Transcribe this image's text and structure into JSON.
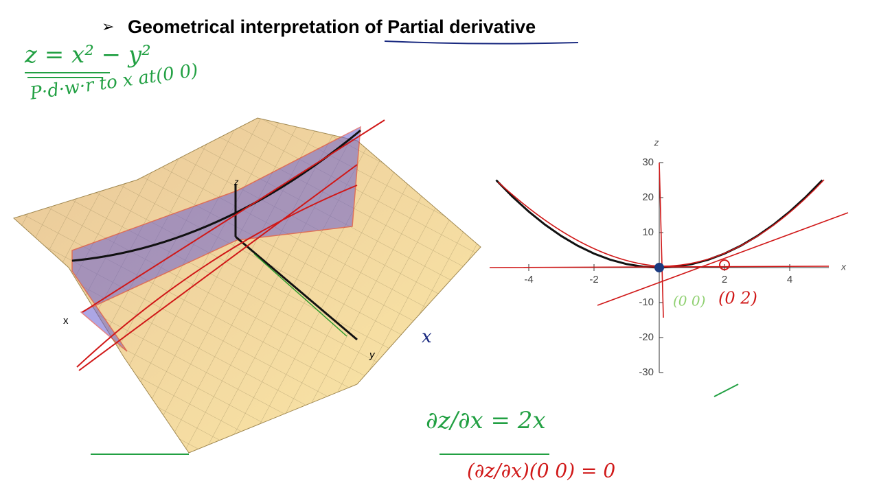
{
  "title": "Geometrical interpretation of Partial derivative",
  "notes": [
    "z = x² − y²",
    "P·d·w·r to x at(0 0)",
    "(0 0)",
    "(0 2)",
    "∂z/∂x = 2x",
    "(∂z/∂x)(0 0) = 0",
    "x"
  ],
  "surface_axes": [
    "x",
    "y",
    "z"
  ],
  "chart_data": {
    "type": "line",
    "xlabel": "x",
    "ylabel": "z",
    "x": [
      -5,
      -4.5,
      -4,
      -3.5,
      -3,
      -2.5,
      -2,
      -1.5,
      -1,
      -0.5,
      0,
      0.5,
      1,
      1.5,
      2,
      2.5,
      3,
      3.5,
      4,
      4.5,
      5
    ],
    "values": [
      25,
      20.25,
      16,
      12.25,
      9,
      6.25,
      4,
      2.25,
      1,
      0.25,
      0,
      0.25,
      1,
      2.25,
      4,
      6.25,
      9,
      12.25,
      16,
      20.25,
      25
    ],
    "color": "#111111",
    "xlim": [
      -5.2,
      5.2
    ],
    "ylim": [
      -30,
      30
    ],
    "xticks": [
      -4,
      -2,
      2,
      4
    ],
    "yticks": [
      -30,
      -20,
      -10,
      10,
      20,
      30
    ]
  }
}
